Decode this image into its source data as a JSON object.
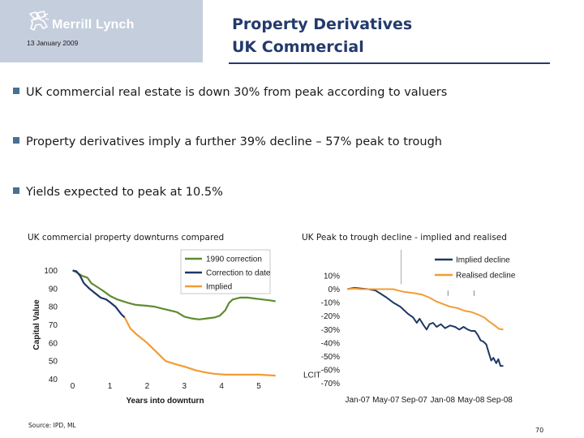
{
  "header": {
    "logo_text": "Merrill Lynch",
    "date": "13 January 2009",
    "title_line1": "Property Derivatives",
    "title_line2": "UK Commercial"
  },
  "bullets": [
    "UK commercial real estate is down 30% from peak according to valuers",
    "Property derivatives imply a further 39% decline – 57% peak to trough",
    "Yields expected to peak at 10.5%"
  ],
  "chart_data": [
    {
      "type": "line",
      "caption": "UK commercial property downturns compared",
      "xlabel": "Years into downturn",
      "ylabel": "Capital Value",
      "x_ticks": [
        0,
        1,
        2,
        3,
        4,
        5
      ],
      "y_ticks": [
        40,
        50,
        60,
        70,
        80,
        90,
        100
      ],
      "xlim": [
        -0.1,
        5.5
      ],
      "ylim": [
        38,
        106
      ],
      "legend_position": "top-right",
      "series": [
        {
          "name": "1990 correction",
          "color": "#5e8c31",
          "points": [
            [
              0,
              100
            ],
            [
              0.1,
              99
            ],
            [
              0.25,
              97
            ],
            [
              0.4,
              96
            ],
            [
              0.5,
              93
            ],
            [
              0.65,
              91
            ],
            [
              0.8,
              89
            ],
            [
              1.0,
              86
            ],
            [
              1.2,
              84
            ],
            [
              1.5,
              82
            ],
            [
              1.7,
              81
            ],
            [
              2.0,
              80.5
            ],
            [
              2.2,
              80
            ],
            [
              2.4,
              79
            ],
            [
              2.6,
              78
            ],
            [
              2.8,
              77
            ],
            [
              3.0,
              74.5
            ],
            [
              3.2,
              73.5
            ],
            [
              3.4,
              73
            ],
            [
              3.6,
              73.5
            ],
            [
              3.8,
              74
            ],
            [
              3.95,
              75
            ],
            [
              4.1,
              78
            ],
            [
              4.2,
              82
            ],
            [
              4.3,
              84
            ],
            [
              4.5,
              85
            ],
            [
              4.7,
              85
            ],
            [
              4.9,
              84.5
            ],
            [
              5.1,
              84
            ],
            [
              5.3,
              83.5
            ],
            [
              5.45,
              83
            ]
          ]
        },
        {
          "name": "Correction to date",
          "color": "#1f3864",
          "points": [
            [
              0,
              100
            ],
            [
              0.1,
              99.5
            ],
            [
              0.2,
              97
            ],
            [
              0.3,
              93
            ],
            [
              0.45,
              90
            ],
            [
              0.6,
              87.5
            ],
            [
              0.75,
              85
            ],
            [
              0.9,
              84
            ],
            [
              1.0,
              82.5
            ],
            [
              1.15,
              80
            ],
            [
              1.3,
              76
            ],
            [
              1.4,
              74
            ]
          ]
        },
        {
          "name": "Implied",
          "color": "#f39c34",
          "points": [
            [
              1.4,
              74
            ],
            [
              1.55,
              68
            ],
            [
              1.7,
              65
            ],
            [
              2.0,
              60
            ],
            [
              2.5,
              50
            ],
            [
              2.8,
              48
            ],
            [
              3.0,
              47
            ],
            [
              3.3,
              45
            ],
            [
              3.5,
              44
            ],
            [
              3.8,
              43
            ],
            [
              4.1,
              42.5
            ],
            [
              4.5,
              42.5
            ],
            [
              5.0,
              42.5
            ],
            [
              5.45,
              42
            ]
          ]
        }
      ]
    },
    {
      "type": "line",
      "caption": "UK Peak to trough decline - implied and realised",
      "x_ticks": [
        "Jan-07",
        "May-07",
        "Sep-07",
        "Jan-08",
        "May-08",
        "Sep-08"
      ],
      "y_ticks": [
        "10%",
        "0%",
        "-10%",
        "-20%",
        "-30%",
        "-40%",
        "-50%",
        "-60%",
        "-70%"
      ],
      "y_tick_values": [
        10,
        0,
        -10,
        -20,
        -30,
        -40,
        -50,
        -60,
        -70
      ],
      "xlim": [
        0,
        24
      ],
      "ylim": [
        -72,
        22
      ],
      "legend_position": "top-right",
      "annotation": "LCIT",
      "series": [
        {
          "name": "Implied decline",
          "color": "#1f3864",
          "points": [
            [
              0,
              0
            ],
            [
              1,
              1
            ],
            [
              2,
              0.5
            ],
            [
              3,
              0
            ],
            [
              4,
              -1
            ],
            [
              4.6,
              -3
            ],
            [
              5.5,
              -6
            ],
            [
              6.5,
              -10
            ],
            [
              7.5,
              -13
            ],
            [
              8.5,
              -18
            ],
            [
              9.3,
              -21
            ],
            [
              9.8,
              -25
            ],
            [
              10.2,
              -22
            ],
            [
              10.8,
              -27
            ],
            [
              11.2,
              -30
            ],
            [
              11.6,
              -26
            ],
            [
              12.1,
              -25
            ],
            [
              12.6,
              -28
            ],
            [
              13.2,
              -26
            ],
            [
              13.8,
              -29
            ],
            [
              14.5,
              -27
            ],
            [
              15.2,
              -28
            ],
            [
              15.8,
              -30
            ],
            [
              16.4,
              -28
            ],
            [
              17.0,
              -30
            ],
            [
              17.5,
              -31
            ],
            [
              18.0,
              -31
            ],
            [
              18.4,
              -34
            ],
            [
              18.8,
              -38
            ],
            [
              19.2,
              -39
            ],
            [
              19.6,
              -41
            ],
            [
              20.0,
              -48
            ],
            [
              20.3,
              -53
            ],
            [
              20.6,
              -51
            ],
            [
              21.0,
              -55
            ],
            [
              21.3,
              -52
            ],
            [
              21.6,
              -57
            ],
            [
              22.0,
              -57
            ]
          ]
        },
        {
          "name": "Realised decline",
          "color": "#f39c34",
          "points": [
            [
              0,
              0
            ],
            [
              1,
              0.5
            ],
            [
              2,
              0
            ],
            [
              3,
              0
            ],
            [
              5,
              0
            ],
            [
              6.5,
              0
            ],
            [
              7.2,
              -1
            ],
            [
              8,
              -2
            ],
            [
              9.5,
              -3
            ],
            [
              10.5,
              -4
            ],
            [
              11.5,
              -6
            ],
            [
              12.5,
              -9
            ],
            [
              13.5,
              -11
            ],
            [
              14.5,
              -13
            ],
            [
              15.5,
              -14
            ],
            [
              16.5,
              -16
            ],
            [
              17.5,
              -17
            ],
            [
              18.5,
              -19
            ],
            [
              19.3,
              -21
            ],
            [
              20,
              -24
            ],
            [
              20.8,
              -27
            ],
            [
              21.4,
              -29.5
            ],
            [
              22,
              -30
            ]
          ]
        }
      ]
    }
  ],
  "footer": {
    "source": "Source: IPD, ML",
    "page_number": "70"
  }
}
